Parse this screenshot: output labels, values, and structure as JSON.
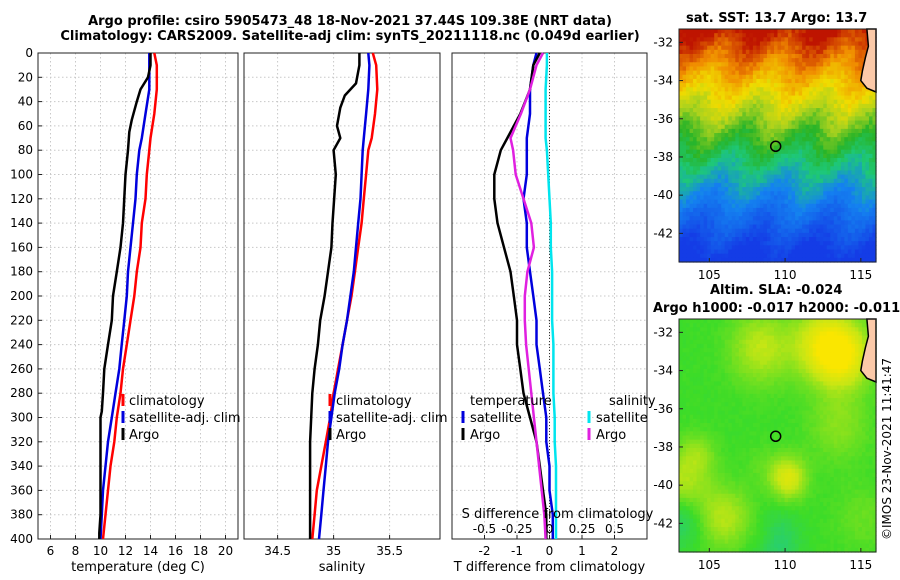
{
  "titles": {
    "line1": "Argo profile: csiro 5905473_48 18-Nov-2021 37.44S 109.38E (NRT data)",
    "line2": "Climatology: CARS2009. Satellite-adj clim: synTS_20211118.nc (0.049d earlier)",
    "sst_map": "sat. SST: 13.7 Argo: 13.7",
    "sla_map_line1": "Altim. SLA: -0.024",
    "sla_map_line2": "Argo h1000: -0.017 h2000: -0.011",
    "watermark": "©IMOS 23-Nov-2021 11:41:47"
  },
  "colors": {
    "climatology": "#ff0000",
    "satellite": "#0000dd",
    "argo": "#000000",
    "salinity_satellite": "#00e5ee",
    "salinity_argo": "#e020e0"
  },
  "chart_data": [
    {
      "type": "line",
      "id": "temperature",
      "xlabel": "temperature (deg C)",
      "ylabel": "",
      "xlim": [
        5,
        21
      ],
      "ylim": [
        0,
        400
      ],
      "y_reversed": true,
      "xticks": [
        6,
        8,
        10,
        12,
        14,
        16,
        18,
        20
      ],
      "yticks": [
        0,
        20,
        40,
        60,
        80,
        100,
        120,
        140,
        160,
        180,
        200,
        220,
        240,
        260,
        280,
        300,
        320,
        340,
        360,
        380,
        400
      ],
      "legend": {
        "position": "bottom-right",
        "entries": [
          "climatology",
          "satellite-adj. clim",
          "Argo"
        ]
      },
      "series": [
        {
          "name": "climatology",
          "color": "#ff0000",
          "x": [
            14.3,
            14.5,
            14.5,
            14.3,
            14.0,
            13.9,
            13.7,
            13.6,
            13.3,
            13.2,
            12.9,
            12.7,
            12.4,
            12.1,
            11.8,
            11.6,
            11.3,
            11.1,
            10.8,
            10.6,
            10.4,
            10.2
          ],
          "y": [
            0,
            10,
            30,
            50,
            70,
            80,
            100,
            120,
            140,
            160,
            180,
            200,
            220,
            240,
            260,
            280,
            300,
            320,
            340,
            360,
            380,
            400
          ]
        },
        {
          "name": "satellite-adj. clim",
          "color": "#0000dd",
          "x": [
            13.9,
            13.9,
            13.9,
            13.6,
            13.3,
            13.1,
            12.9,
            12.8,
            12.6,
            12.4,
            12.2,
            12.1,
            11.9,
            11.7,
            11.5,
            11.2,
            10.9,
            10.6,
            10.4,
            10.2,
            10.1,
            10.0
          ],
          "y": [
            0,
            10,
            30,
            50,
            70,
            80,
            100,
            120,
            140,
            160,
            180,
            200,
            220,
            240,
            260,
            280,
            300,
            320,
            340,
            360,
            380,
            400
          ]
        },
        {
          "name": "Argo",
          "color": "#000000",
          "x": [
            14.0,
            14.0,
            13.8,
            13.2,
            12.9,
            12.5,
            12.3,
            12.2,
            12.0,
            11.8,
            11.6,
            11.3,
            11.0,
            10.9,
            10.6,
            10.3,
            10.2,
            10.1,
            10.0,
            10.0,
            10.0,
            10.0,
            10.0,
            9.9,
            9.9
          ],
          "y": [
            0,
            10,
            20,
            30,
            40,
            55,
            65,
            80,
            100,
            140,
            160,
            180,
            200,
            220,
            240,
            260,
            280,
            295,
            300,
            320,
            340,
            360,
            380,
            395,
            400
          ]
        }
      ]
    },
    {
      "type": "line",
      "id": "salinity",
      "xlabel": "salinity",
      "ylabel": "",
      "xlim": [
        34.2,
        35.95
      ],
      "ylim": [
        0,
        400
      ],
      "y_reversed": true,
      "xticks": [
        34.5,
        35,
        35.5
      ],
      "tick_labels": [
        "34.5",
        "35",
        "35.5"
      ],
      "legend": {
        "position": "bottom-right",
        "entries": [
          "climatology",
          "satellite-adj. clim",
          "Argo"
        ]
      },
      "series": [
        {
          "name": "climatology",
          "color": "#ff0000",
          "x": [
            35.35,
            35.38,
            35.39,
            35.37,
            35.34,
            35.31,
            35.29,
            35.27,
            35.25,
            35.22,
            35.19,
            35.16,
            35.12,
            35.08,
            35.04,
            35.0,
            34.97,
            34.93,
            34.89,
            34.85,
            34.83,
            34.81
          ],
          "y": [
            0,
            10,
            30,
            50,
            70,
            80,
            100,
            120,
            140,
            160,
            180,
            200,
            220,
            240,
            260,
            280,
            300,
            320,
            340,
            360,
            380,
            400
          ]
        },
        {
          "name": "satellite-adj. clim",
          "color": "#0000dd",
          "x": [
            35.31,
            35.32,
            35.31,
            35.29,
            35.27,
            35.26,
            35.25,
            35.24,
            35.22,
            35.2,
            35.18,
            35.15,
            35.12,
            35.08,
            35.05,
            35.01,
            34.98,
            34.95,
            34.93,
            34.91,
            34.89,
            34.87
          ],
          "y": [
            0,
            10,
            30,
            50,
            70,
            80,
            100,
            120,
            140,
            160,
            180,
            200,
            220,
            240,
            260,
            280,
            300,
            320,
            340,
            360,
            380,
            400
          ]
        },
        {
          "name": "Argo",
          "color": "#000000",
          "x": [
            35.23,
            35.23,
            35.2,
            35.1,
            35.06,
            35.03,
            35.06,
            35.0,
            35.02,
            34.99,
            34.98,
            34.95,
            34.92,
            34.88,
            34.86,
            34.83,
            34.81,
            34.8,
            34.79,
            34.79,
            34.79,
            34.79
          ],
          "y": [
            0,
            10,
            25,
            35,
            45,
            60,
            70,
            80,
            100,
            140,
            160,
            180,
            200,
            220,
            240,
            260,
            280,
            300,
            320,
            340,
            380,
            400
          ]
        }
      ]
    },
    {
      "type": "line",
      "id": "difference",
      "xlabel": "T difference from climatology",
      "xlabel_top": "S difference from climatology",
      "xlim": [
        -3,
        3
      ],
      "ylim": [
        0,
        400
      ],
      "y_reversed": true,
      "xticks": [
        -2,
        -1,
        0,
        1,
        2
      ],
      "tick_labels": [
        "-2",
        "-1",
        "0",
        "1",
        "2"
      ],
      "s_ticks": [
        -0.5,
        -0.25,
        0,
        0.25,
        0.5
      ],
      "s_tick_labels": [
        "-0.5",
        "-0.25",
        "0",
        "0.25",
        "0.5"
      ],
      "legend": {
        "temperature_title": "temperature",
        "salinity_title": "salinity",
        "temperature_entries": [
          "satellite",
          "Argo"
        ],
        "salinity_entries": [
          "satellite",
          "Argo"
        ]
      },
      "series": [
        {
          "name": "T satellite",
          "color": "#0000dd",
          "x": [
            -0.4,
            -0.5,
            -0.6,
            -0.6,
            -0.7,
            -0.7,
            -0.7,
            -0.8,
            -0.7,
            -0.7,
            -0.6,
            -0.5,
            -0.4,
            -0.4,
            -0.3,
            -0.2,
            -0.1,
            -0.1,
            0.0,
            0.0,
            0.1,
            0.1
          ],
          "y": [
            0,
            10,
            30,
            50,
            70,
            80,
            100,
            120,
            140,
            160,
            180,
            200,
            220,
            240,
            260,
            280,
            300,
            320,
            340,
            360,
            380,
            400
          ]
        },
        {
          "name": "T Argo",
          "color": "#000000",
          "x": [
            -0.3,
            -0.5,
            -0.6,
            -0.9,
            -1.3,
            -1.5,
            -1.7,
            -1.7,
            -1.6,
            -1.4,
            -1.2,
            -1.1,
            -1.0,
            -1.0,
            -0.9,
            -0.8,
            -0.6,
            -0.4,
            -0.3,
            -0.2,
            -0.1,
            -0.1
          ],
          "y": [
            0,
            10,
            30,
            50,
            70,
            80,
            100,
            120,
            140,
            160,
            180,
            200,
            220,
            240,
            260,
            280,
            300,
            320,
            340,
            360,
            380,
            400
          ]
        },
        {
          "name": "S satellite",
          "color": "#00e5ee",
          "x": [
            -0.02,
            -0.02,
            -0.03,
            -0.03,
            -0.03,
            -0.02,
            -0.01,
            0.0,
            0.01,
            0.01,
            0.02,
            0.02,
            0.02,
            0.03,
            0.03,
            0.03,
            0.04,
            0.04,
            0.05,
            0.05,
            0.05,
            0.05
          ],
          "y": [
            0,
            10,
            30,
            50,
            70,
            80,
            100,
            120,
            140,
            160,
            180,
            200,
            220,
            240,
            260,
            280,
            300,
            320,
            340,
            360,
            380,
            400
          ]
        },
        {
          "name": "S Argo",
          "color": "#e020e0",
          "x": [
            -0.05,
            -0.1,
            -0.15,
            -0.22,
            -0.3,
            -0.28,
            -0.26,
            -0.2,
            -0.14,
            -0.12,
            -0.17,
            -0.19,
            -0.19,
            -0.18,
            -0.16,
            -0.14,
            -0.12,
            -0.1,
            -0.08,
            -0.06,
            -0.04,
            -0.03
          ],
          "y": [
            0,
            10,
            30,
            50,
            70,
            80,
            100,
            120,
            140,
            160,
            180,
            200,
            220,
            240,
            260,
            280,
            300,
            320,
            340,
            360,
            380,
            400
          ]
        }
      ]
    },
    {
      "type": "heatmap",
      "id": "sst_map",
      "title": "sat. SST: 13.7 Argo: 13.7",
      "xlim": [
        103,
        116
      ],
      "ylim": [
        -43.5,
        -31.3
      ],
      "xticks": [
        105,
        110,
        115
      ],
      "yticks": [
        -32,
        -34,
        -36,
        -38,
        -40,
        -42
      ],
      "marker": {
        "lon": 109.38,
        "lat": -37.44
      }
    },
    {
      "type": "heatmap",
      "id": "sla_map",
      "title": "Altim. SLA: -0.024",
      "xlim": [
        103,
        116
      ],
      "ylim": [
        -43.5,
        -31.3
      ],
      "xticks": [
        105,
        110,
        115
      ],
      "yticks": [
        -32,
        -34,
        -36,
        -38,
        -40,
        -42
      ],
      "marker": {
        "lon": 109.38,
        "lat": -37.44
      }
    }
  ]
}
